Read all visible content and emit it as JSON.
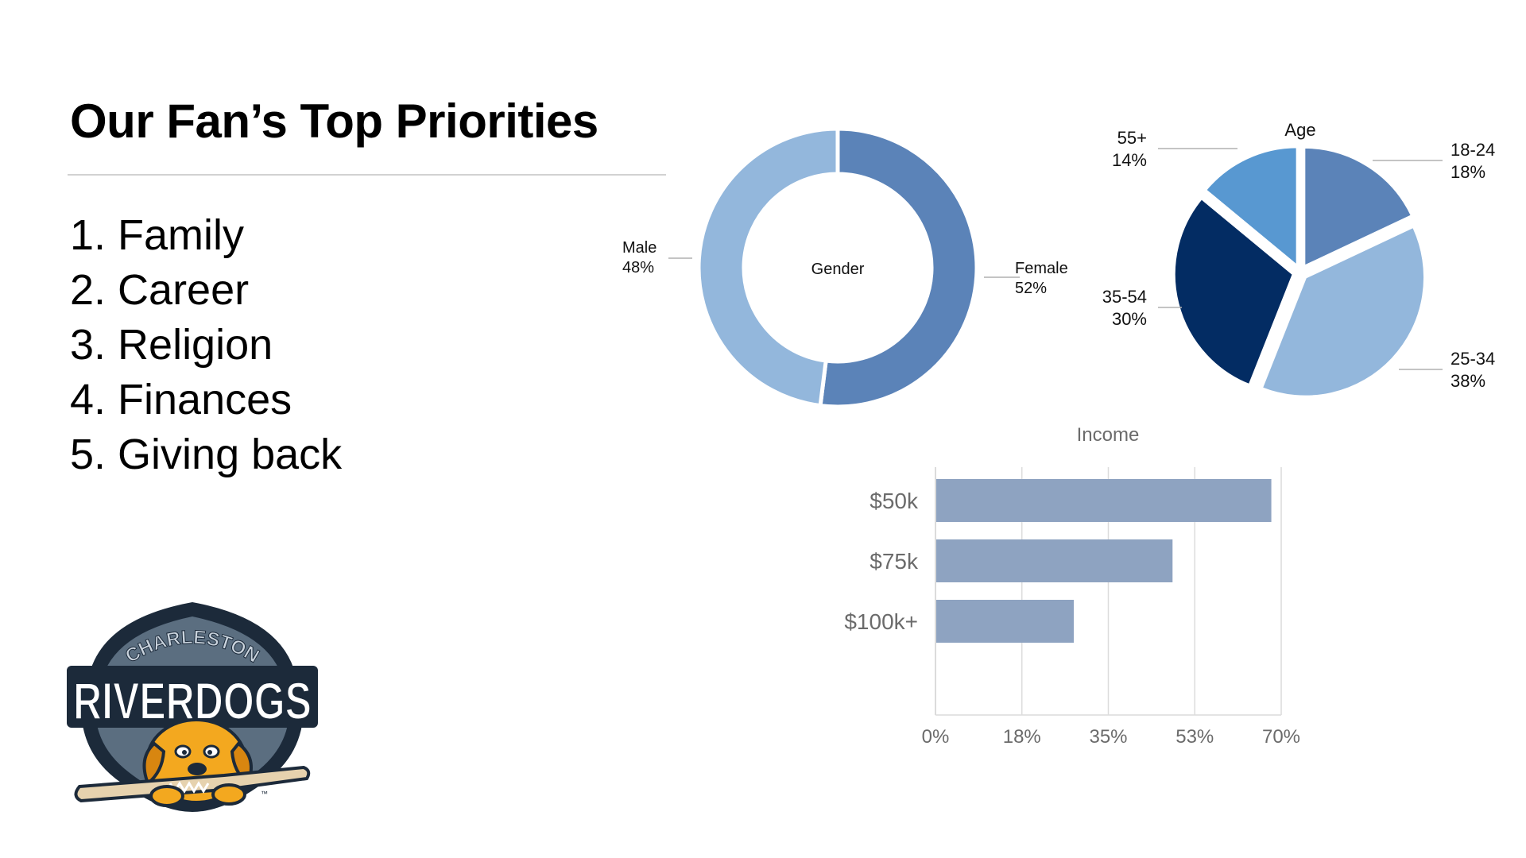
{
  "slide": {
    "title": "Our Fan’s Top Priorities",
    "priorities": [
      "1. Family",
      "2. Career",
      "3. Religion",
      "4. Finances",
      "5. Giving back"
    ]
  },
  "logo": {
    "top_text": "CHARLESTON",
    "main_text": "RIVERDOGS",
    "trademark": "™"
  },
  "chart_data": [
    {
      "type": "pie",
      "variant": "donut",
      "title": "Gender",
      "slices": [
        {
          "label": "Female",
          "value": 52,
          "display": "52%",
          "color": "#5b83b8"
        },
        {
          "label": "Male",
          "value": 48,
          "display": "48%",
          "color": "#93b7dc"
        }
      ]
    },
    {
      "type": "pie",
      "title": "Age",
      "slices": [
        {
          "label": "18-24",
          "value": 18,
          "display": "18%",
          "color": "#5b83b8"
        },
        {
          "label": "25-34",
          "value": 38,
          "display": "38%",
          "color": "#93b7dc"
        },
        {
          "label": "35-54",
          "value": 30,
          "display": "30%",
          "color": "#032c63"
        },
        {
          "label": "55+",
          "value": 14,
          "display": "14%",
          "color": "#5898d1"
        }
      ]
    },
    {
      "type": "bar",
      "orientation": "horizontal",
      "title": "Income",
      "categories": [
        "$50k",
        "$75k",
        "$100k+"
      ],
      "values": [
        68,
        48,
        28
      ],
      "xlim": [
        0,
        70
      ],
      "xticks": [
        "0%",
        "18%",
        "35%",
        "53%",
        "70%"
      ],
      "grid": true,
      "color": "#8ea3c1"
    }
  ]
}
